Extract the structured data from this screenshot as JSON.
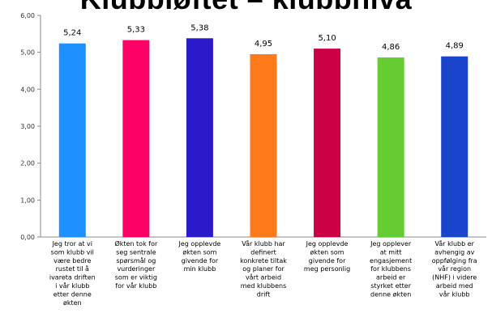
{
  "chart_data": {
    "type": "bar",
    "title": "Klubbløftet – klubbnivå",
    "categories": [
      [
        "Jeg tror at vi",
        "som klubb vil",
        "være bedre",
        "rustet til å",
        "ivareta driften",
        "i vår klubb",
        "etter denne",
        "økten"
      ],
      [
        "Økten tok for",
        "seg sentrale",
        "spørsmål og",
        "vurderinger",
        "som er viktig",
        "for vår klubb"
      ],
      [
        "Jeg opplevde",
        "økten som",
        "givende for",
        "min klubb"
      ],
      [
        "Vår klubb har",
        "definert",
        "konkrete tiltak",
        "og planer for",
        "vårt arbeid",
        "med klubbens",
        "drift"
      ],
      [
        "Jeg opplevde",
        "økten som",
        "givende for",
        "meg personlig"
      ],
      [
        "Jeg opplever",
        "at mitt",
        "engasjement",
        "for klubbens",
        "arbeid er",
        "styrket etter",
        "denne økten"
      ],
      [
        "Vår klubb er",
        "avhengig av",
        "oppfølging fra",
        "vår region",
        "(NHF) i videre",
        "arbeid med",
        "vår klubb"
      ]
    ],
    "values": [
      5.24,
      5.33,
      5.38,
      4.95,
      5.1,
      4.86,
      4.89
    ],
    "value_labels": [
      "5,24",
      "5,33",
      "5,38",
      "4,95",
      "5,10",
      "4,86",
      "4,89"
    ],
    "colors": [
      "#1e90ff",
      "#ff0066",
      "#2a1acb",
      "#ff7a1a",
      "#cc0044",
      "#66cc33",
      "#1a44cc"
    ],
    "ylim": [
      0,
      6
    ],
    "yticks": [
      0,
      1,
      2,
      3,
      4,
      5,
      6
    ],
    "ytick_labels": [
      "0,00",
      "1,00",
      "2,00",
      "3,00",
      "4,00",
      "5,00",
      "6,00"
    ],
    "grid": false,
    "legend": "none"
  }
}
